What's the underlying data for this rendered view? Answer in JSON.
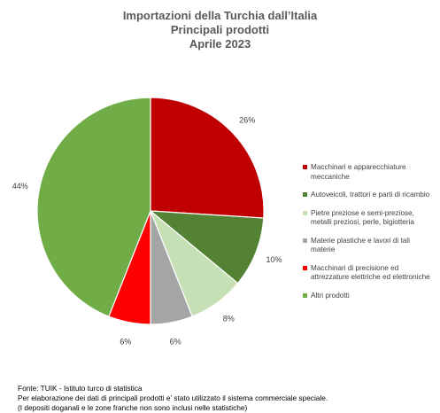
{
  "chart_data": {
    "type": "pie",
    "title": [
      "Importazioni della Turchia dall’Italia",
      "Principali prodotti",
      "Aprile 2023"
    ],
    "slices": [
      {
        "label": "Macchinari e apparecchiature meccaniche",
        "value": 26,
        "pct_label": "26%",
        "color": "#C00000"
      },
      {
        "label": "Autoveicoli, trattori e parti di ricambio",
        "value": 10,
        "pct_label": "10%",
        "color": "#548235"
      },
      {
        "label": "Pietre preziose e semi-preziose, metalli preziosi, perle, bigiotteria",
        "value": 8,
        "pct_label": "8%",
        "color": "#C5E0B4"
      },
      {
        "label": "Materie plastiche e lavori di tali materie",
        "value": 6,
        "pct_label": "6%",
        "color": "#A5A5A5"
      },
      {
        "label": "Macchinari di precisione ed attrezzature elettriche ed elettroniche",
        "value": 6,
        "pct_label": "6%",
        "color": "#FF0000"
      },
      {
        "label": "Altri prodotti",
        "value": 44,
        "pct_label": "44%",
        "color": "#70AD47"
      }
    ],
    "legend_position": "right"
  },
  "footer": [
    "Fonte: TUIK - Istituto turco di statistica",
    "Per elaborazione dei dati di principali prodotti e’ stato utilizzato il sistema commerciale speciale.",
    "(I depositi doganali e le zone franche non sono inclusi nelle statistiche)"
  ]
}
